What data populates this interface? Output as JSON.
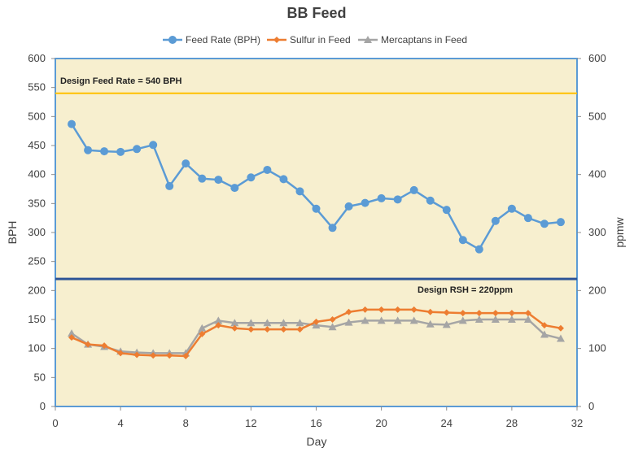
{
  "chart_data": {
    "type": "line",
    "title": "BB Feed",
    "xlabel": "Day",
    "ylabel_left": "BPH",
    "ylabel_right": "ppmw",
    "xlim": [
      0,
      32
    ],
    "x_ticks": [
      0,
      4,
      8,
      12,
      16,
      20,
      24,
      28,
      32
    ],
    "ylim_left": [
      0,
      600
    ],
    "y_ticks_left": [
      0,
      50,
      100,
      150,
      200,
      250,
      300,
      350,
      400,
      450,
      500,
      550,
      600
    ],
    "ylim_right": [
      0,
      600
    ],
    "y_ticks_right": [
      0,
      100,
      200,
      300,
      400,
      500,
      600
    ],
    "grid": false,
    "legend_position": "top",
    "colors": {
      "plot_bg": "#f7efcf",
      "border": "#5b9bd5",
      "feed": "#5b9bd5",
      "sulfur": "#ed7d31",
      "mercaptans": "#a5a5a5",
      "design_feed_line": "#ffc000",
      "design_rsh_line": "#2e5597"
    },
    "x": [
      1,
      2,
      3,
      4,
      5,
      6,
      7,
      8,
      9,
      10,
      11,
      12,
      13,
      14,
      15,
      16,
      17,
      18,
      19,
      20,
      21,
      22,
      23,
      24,
      25,
      26,
      27,
      28,
      29,
      30,
      31
    ],
    "series": [
      {
        "name": "Feed Rate (BPH)",
        "axis": "left",
        "marker": "circle",
        "values": [
          487,
          442,
          440,
          439,
          444,
          451,
          380,
          419,
          393,
          391,
          377,
          395,
          408,
          392,
          371,
          341,
          308,
          345,
          351,
          359,
          357,
          373,
          355,
          339,
          287,
          271,
          320,
          341,
          325,
          315,
          318
        ]
      },
      {
        "name": "Sulfur in Feed",
        "axis": "left",
        "marker": "diamond",
        "values": [
          119,
          107,
          105,
          92,
          89,
          88,
          88,
          87,
          125,
          140,
          135,
          133,
          133,
          133,
          133,
          146,
          150,
          163,
          167,
          167,
          167,
          167,
          163,
          162,
          161,
          161,
          161,
          161,
          161,
          140,
          135
        ]
      },
      {
        "name": "Mercaptans in Feed",
        "axis": "left",
        "marker": "triangle",
        "values": [
          126,
          107,
          103,
          95,
          93,
          92,
          92,
          92,
          135,
          148,
          144,
          144,
          144,
          144,
          144,
          140,
          137,
          145,
          148,
          148,
          148,
          148,
          142,
          141,
          148,
          150,
          150,
          150,
          150,
          124,
          117
        ]
      }
    ],
    "reference_lines": [
      {
        "label": "Design Feed Rate = 540 BPH",
        "value": 540
      },
      {
        "label": "Design RSH = 220ppm",
        "value": 220
      }
    ]
  }
}
